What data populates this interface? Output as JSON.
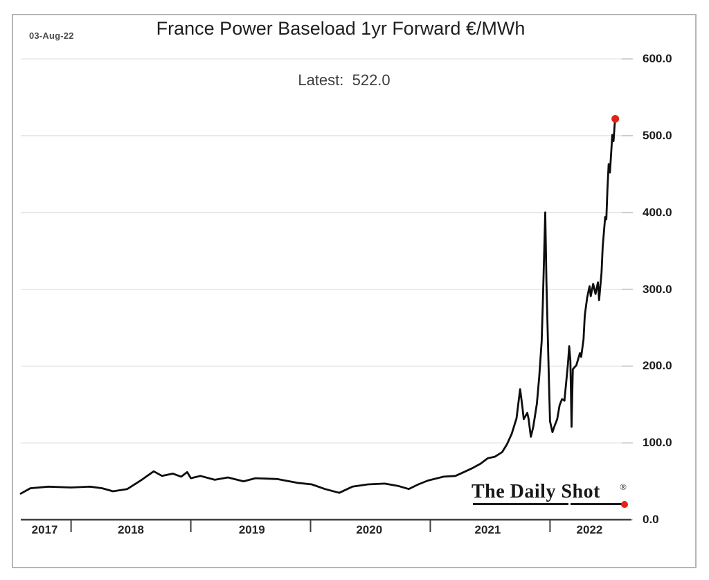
{
  "page": {
    "date_label": "03-Aug-22",
    "title": "France Power Baseload 1yr Forward €/MWh",
    "latest_annotation": "Latest:  522.0"
  },
  "logo": {
    "text": "The Daily Shot",
    "registered_mark": "®",
    "dot_color": "#e02418"
  },
  "chart_data": {
    "type": "line",
    "title": "France Power Baseload 1yr Forward €/MWh",
    "date_annotation": "03-Aug-22",
    "latest_value": 522.0,
    "unit": "€/MWh",
    "xlabel": "",
    "ylabel": "",
    "grid": true,
    "legend": false,
    "line_color": "#0d0d0d",
    "marker_color": "#e02418",
    "grid_color": "#e4e4e4",
    "axis_color": "#3f3f3f",
    "ylim": [
      0,
      600
    ],
    "xlim": [
      2017.58,
      2022.68
    ],
    "y_ticks": [
      600.0,
      500.0,
      400.0,
      300.0,
      200.0,
      100.0,
      0.0
    ],
    "y_tick_labels": [
      "600.0",
      "500.0",
      "400.0",
      "300.0",
      "200.0",
      "100.0",
      "0.0"
    ],
    "x_boundary_ticks": [
      2018,
      2019,
      2020,
      2021,
      2022
    ],
    "x_year_labels": [
      {
        "label": "2017",
        "pos": 2017.78
      },
      {
        "label": "2018",
        "pos": 2018.5
      },
      {
        "label": "2019",
        "pos": 2019.51
      },
      {
        "label": "2020",
        "pos": 2020.49
      },
      {
        "label": "2021",
        "pos": 2021.48
      },
      {
        "label": "2022",
        "pos": 2022.33
      }
    ],
    "series": [
      {
        "name": "France Power Baseload 1yr Forward",
        "points": [
          [
            2017.58,
            34
          ],
          [
            2017.66,
            41
          ],
          [
            2017.81,
            43
          ],
          [
            2018.0,
            42
          ],
          [
            2018.16,
            43
          ],
          [
            2018.26,
            41
          ],
          [
            2018.35,
            37
          ],
          [
            2018.47,
            40
          ],
          [
            2018.59,
            52
          ],
          [
            2018.69,
            63
          ],
          [
            2018.76,
            57
          ],
          [
            2018.85,
            60
          ],
          [
            2018.92,
            56
          ],
          [
            2018.97,
            62
          ],
          [
            2019.0,
            54
          ],
          [
            2019.08,
            57
          ],
          [
            2019.2,
            52
          ],
          [
            2019.31,
            55
          ],
          [
            2019.44,
            50
          ],
          [
            2019.54,
            54
          ],
          [
            2019.72,
            53
          ],
          [
            2019.89,
            48
          ],
          [
            2020.01,
            46
          ],
          [
            2020.12,
            40
          ],
          [
            2020.24,
            35
          ],
          [
            2020.35,
            43
          ],
          [
            2020.48,
            46
          ],
          [
            2020.62,
            47
          ],
          [
            2020.73,
            44
          ],
          [
            2020.82,
            40
          ],
          [
            2020.9,
            46
          ],
          [
            2020.98,
            51
          ],
          [
            2021.11,
            56
          ],
          [
            2021.21,
            57
          ],
          [
            2021.28,
            62
          ],
          [
            2021.35,
            67
          ],
          [
            2021.42,
            73
          ],
          [
            2021.48,
            80
          ],
          [
            2021.54,
            82
          ],
          [
            2021.6,
            88
          ],
          [
            2021.64,
            98
          ],
          [
            2021.68,
            112
          ],
          [
            2021.72,
            132
          ],
          [
            2021.75,
            170
          ],
          [
            2021.77,
            146
          ],
          [
            2021.78,
            131
          ],
          [
            2021.81,
            139
          ],
          [
            2021.82,
            132
          ],
          [
            2021.84,
            108
          ],
          [
            2021.86,
            121
          ],
          [
            2021.89,
            151
          ],
          [
            2021.91,
            186
          ],
          [
            2021.93,
            232
          ],
          [
            2021.94,
            282
          ],
          [
            2021.96,
            400
          ],
          [
            2021.97,
            310
          ],
          [
            2021.99,
            185
          ],
          [
            2022.0,
            128
          ],
          [
            2022.02,
            114
          ],
          [
            2022.04,
            123
          ],
          [
            2022.06,
            131
          ],
          [
            2022.08,
            149
          ],
          [
            2022.1,
            157
          ],
          [
            2022.12,
            155
          ],
          [
            2022.15,
            203
          ],
          [
            2022.16,
            226
          ],
          [
            2022.17,
            207
          ],
          [
            2022.18,
            121
          ],
          [
            2022.19,
            196
          ],
          [
            2022.22,
            201
          ],
          [
            2022.25,
            217
          ],
          [
            2022.26,
            212
          ],
          [
            2022.28,
            235
          ],
          [
            2022.29,
            266
          ],
          [
            2022.31,
            289
          ],
          [
            2022.33,
            304
          ],
          [
            2022.34,
            291
          ],
          [
            2022.36,
            307
          ],
          [
            2022.38,
            294
          ],
          [
            2022.4,
            309
          ],
          [
            2022.41,
            286
          ],
          [
            2022.43,
            322
          ],
          [
            2022.44,
            356
          ],
          [
            2022.45,
            374
          ],
          [
            2022.46,
            394
          ],
          [
            2022.47,
            391
          ],
          [
            2022.48,
            432
          ],
          [
            2022.49,
            463
          ],
          [
            2022.5,
            452
          ],
          [
            2022.51,
            476
          ],
          [
            2022.52,
            501
          ],
          [
            2022.53,
            493
          ],
          [
            2022.54,
            515
          ],
          [
            2022.545,
            522
          ]
        ]
      }
    ],
    "end_marker": [
      2022.545,
      522
    ]
  }
}
